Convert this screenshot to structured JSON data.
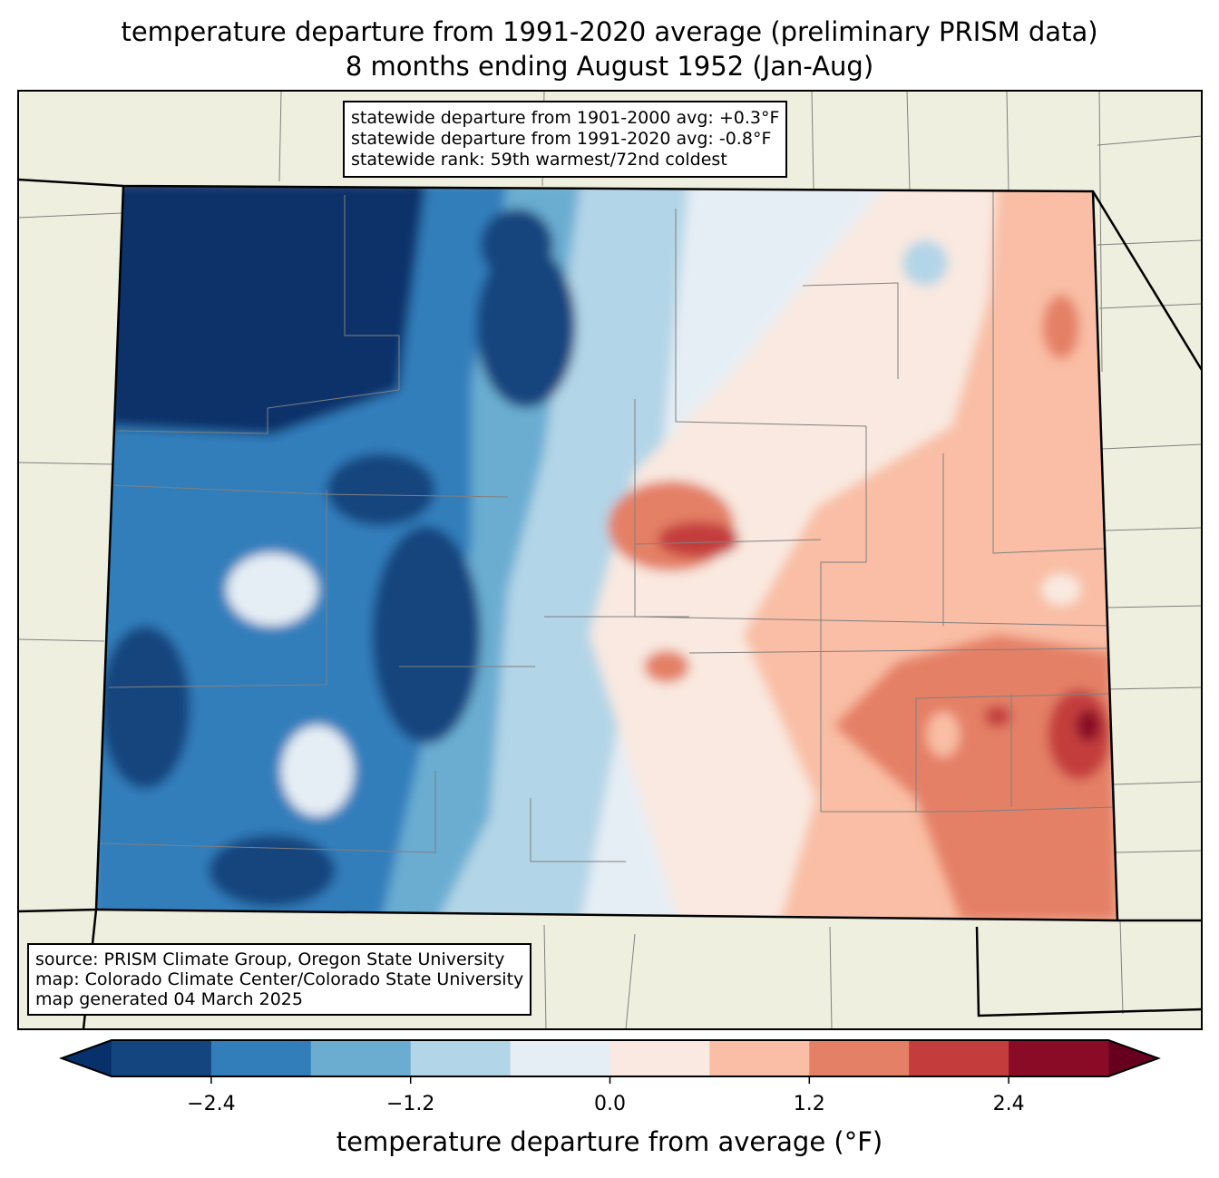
{
  "title": {
    "line1": "temperature departure from 1991-2020 average (preliminary PRISM data)",
    "line2": "8 months ending August 1952 (Jan-Aug)"
  },
  "stats": {
    "line1": "statewide departure from 1901-2000 avg: +0.3°F",
    "line2": "statewide departure from 1991-2020 avg: -0.8°F",
    "line3": "statewide rank: 59th warmest/72nd coldest"
  },
  "source": {
    "line1": "source: PRISM Climate Group, Oregon State University",
    "line2": "map: Colorado Climate Center/Colorado State University",
    "line3": "map generated 04 March 2025"
  },
  "colorbar": {
    "label": "temperature departure from average (°F)",
    "ticks": [
      "−2.4",
      "−1.2",
      "0.0",
      "1.2",
      "2.4"
    ],
    "tick_values": [
      -2.4,
      -1.2,
      0.0,
      1.2,
      2.4
    ],
    "levels": [
      -3.0,
      -2.4,
      -1.8,
      -1.2,
      -0.6,
      0.0,
      0.6,
      1.2,
      1.8,
      2.4,
      3.0
    ],
    "under_color": "#08306b",
    "over_color": "#67001f",
    "colors": [
      "#15457e",
      "#327ebb",
      "#6badd1",
      "#b2d5e7",
      "#e6eef5",
      "#f9e9e0",
      "#f9bea5",
      "#e48066",
      "#c43c3c",
      "#8a0b25"
    ]
  },
  "colors": {
    "land": "#efefdf",
    "county": "#808080",
    "border": "#000000"
  }
}
